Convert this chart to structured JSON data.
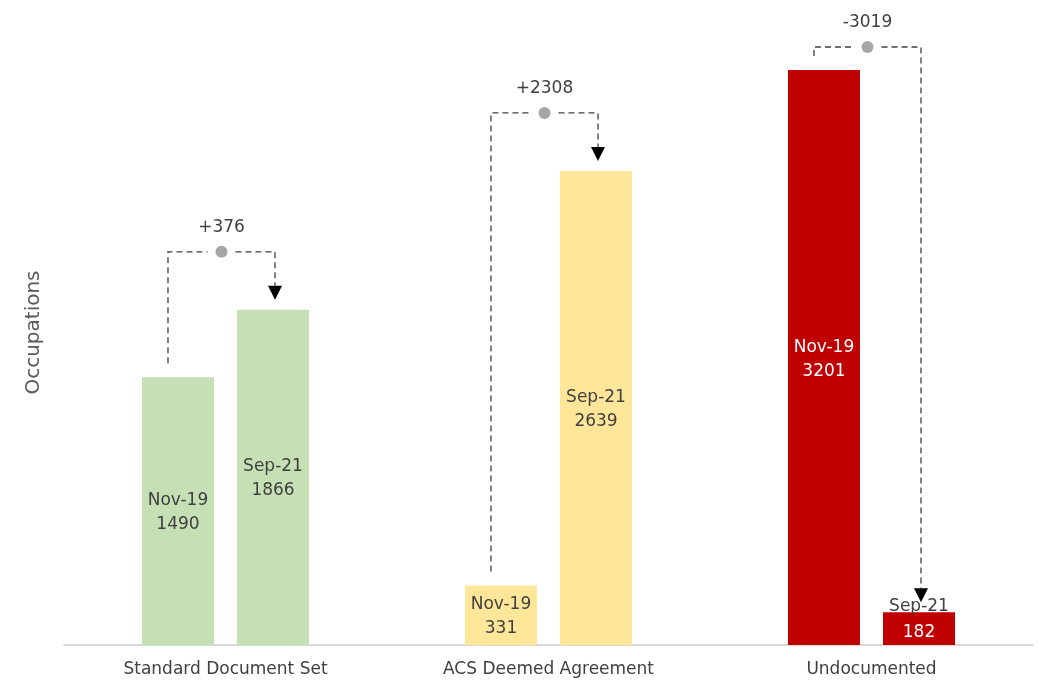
{
  "chart_data": {
    "type": "bar",
    "ylabel": "Occupations",
    "categories": [
      "Standard Document Set",
      "ACS Deemed Agreement",
      "Undocumented"
    ],
    "series": [
      {
        "name": "Nov-19",
        "colors": [
          "#c5e0b4",
          "#ffe699",
          "#c00000"
        ],
        "values": [
          1490,
          331,
          3201
        ]
      },
      {
        "name": "Sep-21",
        "colors": [
          "#c5e0b4",
          "#ffe699",
          "#c00000"
        ],
        "values": [
          1866,
          2639,
          182
        ]
      }
    ],
    "data_labels": true,
    "legend": false,
    "grid": false,
    "annotations": [
      "+376",
      "+2308",
      "-3019"
    ]
  }
}
